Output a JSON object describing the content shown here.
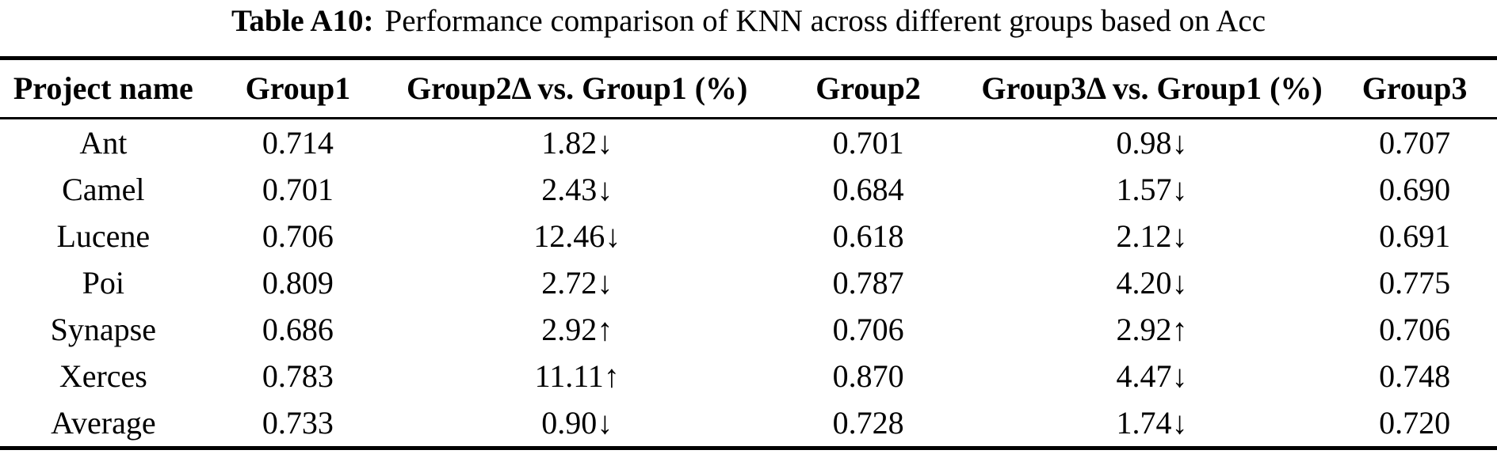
{
  "caption": {
    "label": "Table A10:",
    "text": "Performance comparison of KNN across different groups based on Acc"
  },
  "table": {
    "columns": [
      "Project name",
      "Group1",
      "Group2Δ vs. Group1 (%)",
      "Group2",
      "Group3Δ vs. Group1 (%)",
      "Group3"
    ],
    "rows": [
      [
        "Ant",
        "0.714",
        "1.82↓",
        "0.701",
        "0.98↓",
        "0.707"
      ],
      [
        "Camel",
        "0.701",
        "2.43↓",
        "0.684",
        "1.57↓",
        "0.690"
      ],
      [
        "Lucene",
        "0.706",
        "12.46↓",
        "0.618",
        "2.12↓",
        "0.691"
      ],
      [
        "Poi",
        "0.809",
        "2.72↓",
        "0.787",
        "4.20↓",
        "0.775"
      ],
      [
        "Synapse",
        "0.686",
        "2.92↑",
        "0.706",
        "2.92↑",
        "0.706"
      ],
      [
        "Xerces",
        "0.783",
        "11.11↑",
        "0.870",
        "4.47↓",
        "0.748"
      ],
      [
        "Average",
        "0.733",
        "0.90↓",
        "0.728",
        "1.74↓",
        "0.720"
      ]
    ]
  },
  "colors": {
    "text": "#000000",
    "background": "#ffffff",
    "rule": "#000000"
  }
}
